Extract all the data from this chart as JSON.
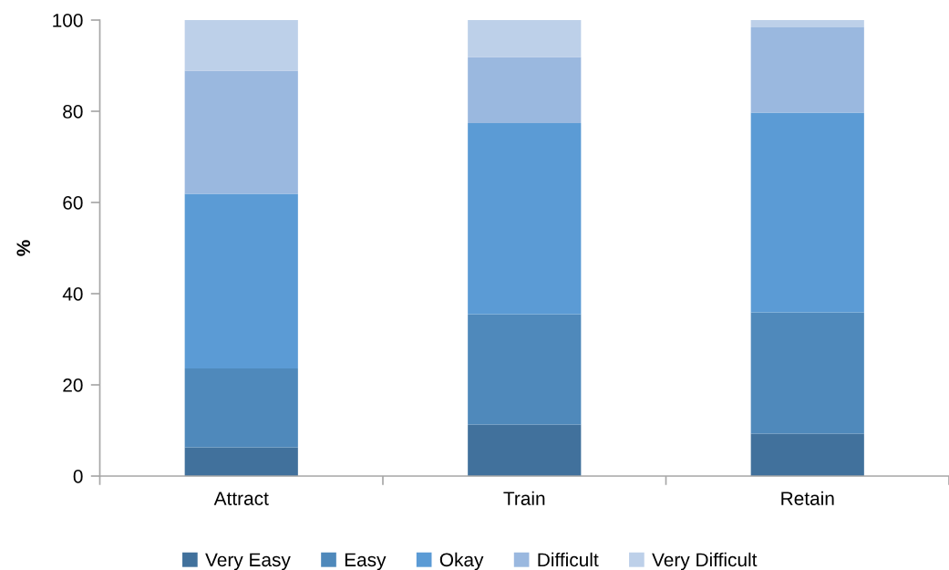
{
  "chart_data": {
    "type": "bar",
    "stacked": true,
    "ylabel": "%",
    "categories": [
      "Attract",
      "Train",
      "Retain"
    ],
    "series": [
      {
        "name": "Very Easy",
        "color": "#41719c",
        "values": [
          6.3,
          11.3,
          9.3
        ]
      },
      {
        "name": "Easy",
        "color": "#4f89bb",
        "values": [
          17.3,
          24.2,
          26.6
        ]
      },
      {
        "name": "Okay",
        "color": "#5b9bd5",
        "values": [
          38.3,
          41.9,
          43.8
        ]
      },
      {
        "name": "Difficult",
        "color": "#9ab8df",
        "values": [
          27.0,
          14.5,
          18.7
        ]
      },
      {
        "name": "Very Difficult",
        "color": "#bdd0e9",
        "values": [
          11.1,
          8.1,
          1.6
        ]
      }
    ],
    "ylim": [
      0,
      100
    ],
    "yticks": [
      0,
      20,
      40,
      60,
      80,
      100
    ],
    "grid": false,
    "legend": "bottom"
  }
}
